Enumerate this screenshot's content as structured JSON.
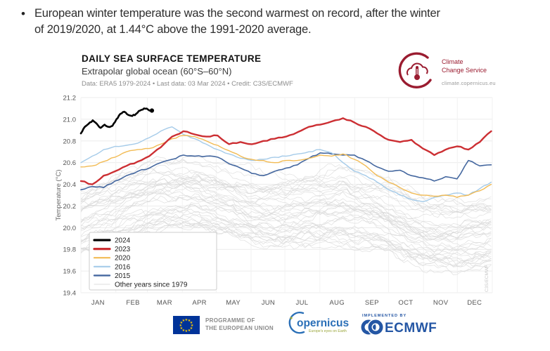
{
  "bullet": {
    "dot": "•",
    "line1": "European winter temperature was the second warmest on record, after the winter",
    "line2": "of 2019/2020, at 1.44°C above the 1991-2020 average."
  },
  "header": {
    "title": "DAILY SEA SURFACE TEMPERATURE",
    "subtitle": "Extrapolar global ocean (60°S–60°N)",
    "dataline": "Data: ERA5 1979-2024 • Last data: 03 Mar 2024 • Credit: C3S/ECMWF",
    "logo": {
      "line1": "Climate",
      "line2": "Change Service",
      "url": "climate.copernicus.eu",
      "color": "#9a1c30"
    }
  },
  "chart_data": {
    "type": "line",
    "title": "DAILY SEA SURFACE TEMPERATURE",
    "ylabel": "Temperature (°C)",
    "ylim": [
      19.4,
      21.2
    ],
    "ytick_step": 0.2,
    "yticks": [
      19.4,
      19.6,
      19.8,
      20.0,
      20.2,
      20.4,
      20.6,
      20.8,
      21.0,
      21.2
    ],
    "months": [
      "JAN",
      "FEB",
      "MAR",
      "APR",
      "MAY",
      "JUN",
      "JUL",
      "AUG",
      "SEP",
      "OCT",
      "NOV",
      "DEC"
    ],
    "grid_on": true,
    "legend_position": "lower-left",
    "watermark": "C3S/ECMWF",
    "axis_text_color": "#555555",
    "grid_color": "#ececec",
    "series": [
      {
        "name": "2024",
        "color": "#000000",
        "width": 2.6,
        "span_days": 63,
        "end_dot": true,
        "values": [
          20.87,
          20.93,
          20.96,
          20.99,
          20.96,
          20.92,
          20.95,
          20.93,
          20.94,
          21.0,
          21.05,
          21.07,
          21.04,
          21.03,
          21.05,
          21.08,
          21.1,
          21.09,
          21.08
        ]
      },
      {
        "name": "2023",
        "color": "#cc2f33",
        "width": 2.4,
        "span_days": 364,
        "values": [
          20.43,
          20.4,
          20.48,
          20.52,
          20.57,
          20.61,
          20.66,
          20.74,
          20.84,
          20.89,
          20.86,
          20.84,
          20.85,
          20.77,
          20.79,
          20.77,
          20.8,
          20.82,
          20.84,
          20.88,
          20.93,
          20.95,
          20.98,
          21.01,
          20.97,
          20.93,
          20.87,
          20.81,
          20.79,
          20.81,
          20.73,
          20.67,
          20.72,
          20.75,
          20.72,
          20.79,
          20.89
        ]
      },
      {
        "name": "2020",
        "color": "#f2bb54",
        "width": 1.4,
        "span_days": 364,
        "values": [
          20.56,
          20.57,
          20.61,
          20.65,
          20.7,
          20.72,
          20.73,
          20.77,
          20.82,
          20.85,
          20.84,
          20.8,
          20.76,
          20.71,
          20.66,
          20.63,
          20.62,
          20.6,
          20.62,
          20.62,
          20.64,
          20.67,
          20.66,
          20.68,
          20.63,
          20.57,
          20.48,
          20.42,
          20.37,
          20.32,
          20.3,
          20.29,
          20.3,
          20.28,
          20.3,
          20.34,
          20.4
        ]
      },
      {
        "name": "2016",
        "color": "#a5cbe9",
        "width": 1.4,
        "span_days": 364,
        "values": [
          20.6,
          20.66,
          20.72,
          20.75,
          20.76,
          20.78,
          20.83,
          20.89,
          20.93,
          20.86,
          20.82,
          20.77,
          20.72,
          20.68,
          20.64,
          20.62,
          20.63,
          20.65,
          20.66,
          20.68,
          20.7,
          20.72,
          20.69,
          20.6,
          20.52,
          20.48,
          20.42,
          20.35,
          20.3,
          20.26,
          20.24,
          20.28,
          20.3,
          20.32,
          20.3,
          20.36,
          20.42
        ]
      },
      {
        "name": "2015",
        "color": "#44679f",
        "width": 1.6,
        "span_days": 364,
        "values": [
          20.35,
          20.38,
          20.37,
          20.43,
          20.48,
          20.52,
          20.55,
          20.6,
          20.63,
          20.67,
          20.66,
          20.66,
          20.65,
          20.59,
          20.55,
          20.5,
          20.48,
          20.52,
          20.55,
          20.58,
          20.64,
          20.69,
          20.68,
          20.67,
          20.67,
          20.62,
          20.56,
          20.52,
          20.53,
          20.48,
          20.46,
          20.43,
          20.47,
          20.45,
          20.62,
          20.57,
          20.58
        ]
      }
    ],
    "other_years": {
      "label": "Other years since 1979",
      "count": 41,
      "color": "#d9d9d9",
      "width": 0.7,
      "monthly_base": [
        20.06,
        20.18,
        20.3,
        20.32,
        20.24,
        20.15,
        20.17,
        20.21,
        20.14,
        19.98,
        19.92,
        19.99
      ],
      "offset_range": [
        -0.33,
        0.27
      ],
      "jitter": 0.05
    }
  },
  "footer": {
    "eu": {
      "line1": "PROGRAMME OF",
      "line2": "THE EUROPEAN UNION",
      "flag_blue": "#003399",
      "star_yellow": "#ffcc00",
      "stars": 12
    },
    "copernicus": {
      "text": "opernicus",
      "tagline": "Europe's eyes on Earth",
      "blue": "#2a6fb7",
      "green": "#9aa63b"
    },
    "ecmwf": {
      "small": "IMPLEMENTED BY",
      "text": "ECMWF",
      "blue": "#2456a4"
    }
  }
}
